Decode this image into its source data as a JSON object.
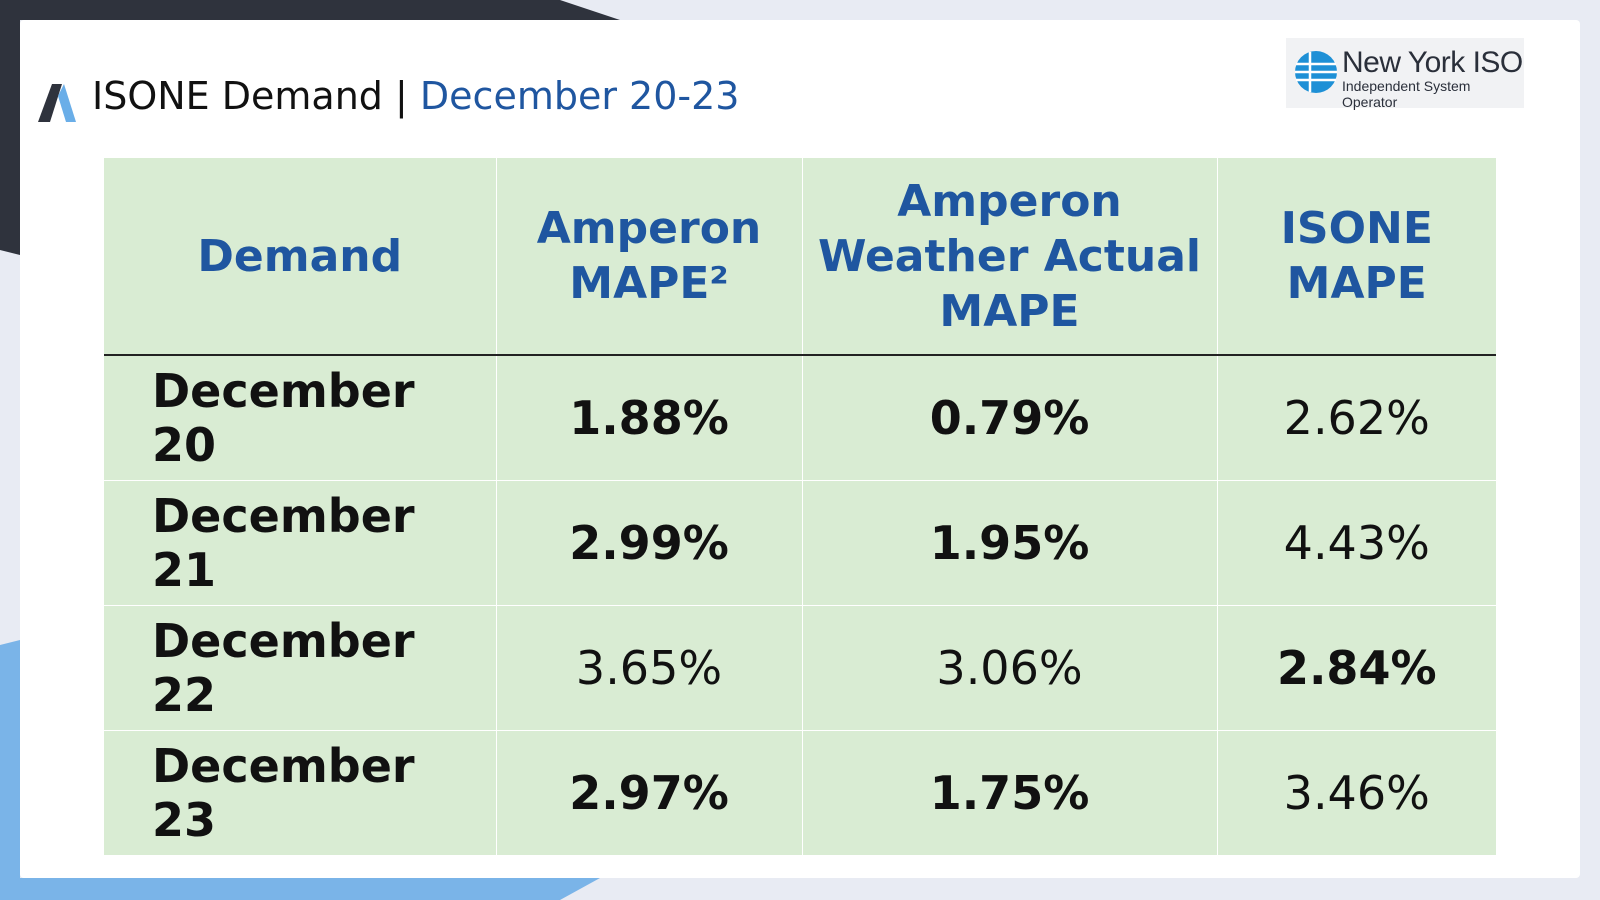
{
  "header": {
    "title": "ISONE Demand",
    "separator": "|",
    "subtitle": "December 20-23"
  },
  "logo": {
    "name": "New York ISO",
    "tagline": "Independent System Operator"
  },
  "table": {
    "columns": [
      "Demand",
      "Amperon MAPE²",
      "Amperon Weather Actual MAPE",
      "ISONE MAPE"
    ],
    "rows": [
      [
        "December 20",
        "1.88%",
        "0.79%",
        "2.62%"
      ],
      [
        "December 21",
        "2.99%",
        "1.95%",
        "4.43%"
      ],
      [
        "December 22",
        "3.65%",
        "3.06%",
        "2.84%"
      ],
      [
        "December 23",
        "2.97%",
        "1.75%",
        "3.46%"
      ]
    ],
    "bold": [
      [
        true,
        true,
        true,
        false
      ],
      [
        true,
        true,
        true,
        false
      ],
      [
        true,
        false,
        false,
        true
      ],
      [
        true,
        true,
        true,
        false
      ]
    ]
  }
}
